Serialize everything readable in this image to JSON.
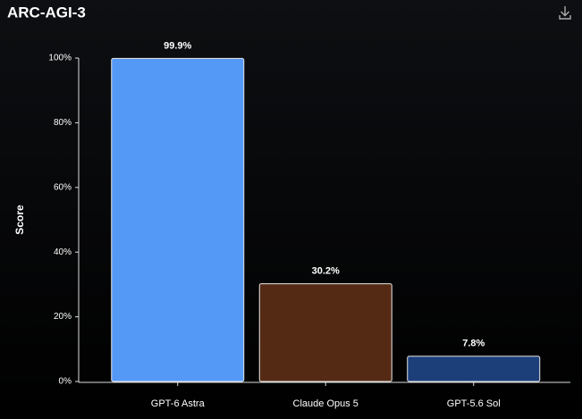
{
  "chart_data": {
    "type": "bar",
    "title": "ARC-AGI-3",
    "y_label": "Score",
    "categories": [
      "GPT-6 Astra",
      "Claude Opus 5",
      "GPT-5.6 Sol"
    ],
    "values": [
      99.9,
      30.2,
      7.8
    ],
    "value_labels": [
      "99.9%",
      "30.2%",
      "7.8%"
    ],
    "colors": [
      "#5599f7",
      "#552a14",
      "#1c3f7a"
    ],
    "ylim": [
      0,
      100
    ],
    "yticks": [
      {
        "value": 0,
        "label": "0%"
      },
      {
        "value": 20,
        "label": "20%"
      },
      {
        "value": 40,
        "label": "40%"
      },
      {
        "value": 60,
        "label": "60%"
      },
      {
        "value": 80,
        "label": "80%"
      },
      {
        "value": 100,
        "label": "100%"
      }
    ]
  }
}
